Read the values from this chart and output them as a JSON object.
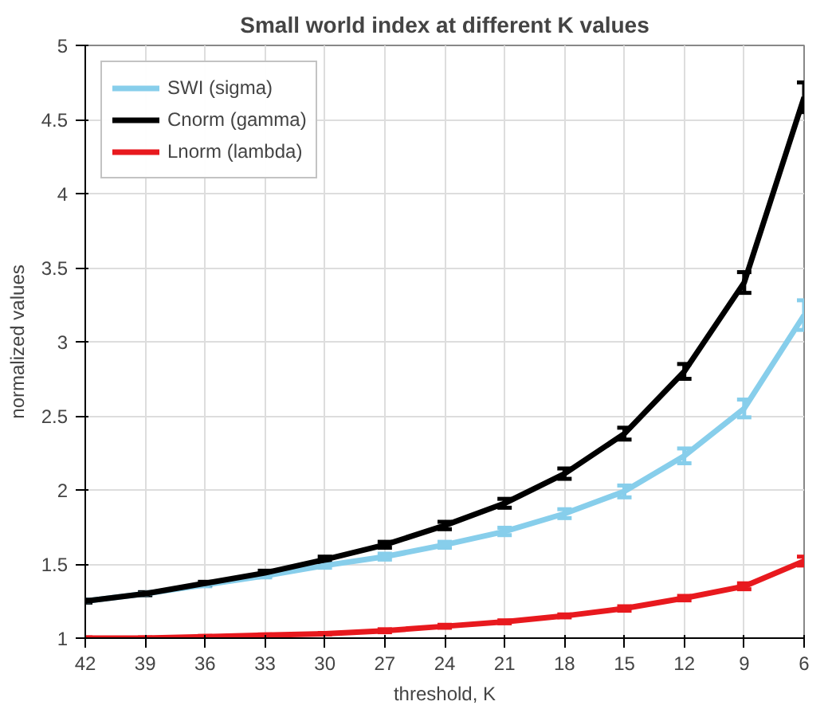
{
  "chart_data": {
    "type": "line",
    "title": "Small world index at different K values",
    "xlabel": "threshold, K",
    "ylabel": "normalized values",
    "x": [
      42,
      39,
      36,
      33,
      30,
      27,
      24,
      21,
      18,
      15,
      12,
      9,
      6
    ],
    "xlim": [
      42,
      6
    ],
    "xticks": [
      42,
      39,
      36,
      33,
      30,
      27,
      24,
      21,
      18,
      15,
      12,
      9,
      6
    ],
    "ylim": [
      1,
      5
    ],
    "yticks": [
      1,
      1.5,
      2,
      2.5,
      3,
      3.5,
      4,
      4.5,
      5
    ],
    "series": [
      {
        "name": "SWI (sigma)",
        "color": "#87ceeb",
        "values": [
          1.25,
          1.3,
          1.36,
          1.42,
          1.49,
          1.55,
          1.63,
          1.72,
          1.84,
          1.99,
          2.23,
          2.55,
          3.18
        ],
        "errors": [
          0.01,
          0.01,
          0.01,
          0.01,
          0.015,
          0.02,
          0.02,
          0.025,
          0.03,
          0.04,
          0.05,
          0.06,
          0.1
        ]
      },
      {
        "name": "Cnorm (gamma)",
        "color": "#000000",
        "values": [
          1.25,
          1.3,
          1.37,
          1.44,
          1.53,
          1.63,
          1.76,
          1.91,
          2.11,
          2.38,
          2.8,
          3.4,
          4.65
        ],
        "errors": [
          0.01,
          0.01,
          0.01,
          0.015,
          0.02,
          0.02,
          0.025,
          0.03,
          0.035,
          0.04,
          0.05,
          0.07,
          0.1
        ]
      },
      {
        "name": "Lnorm (lambda)",
        "color": "#e8191e",
        "values": [
          1.0,
          1.0,
          1.01,
          1.02,
          1.03,
          1.05,
          1.08,
          1.11,
          1.15,
          1.2,
          1.27,
          1.35,
          1.52
        ],
        "errors": [
          0.005,
          0.005,
          0.005,
          0.005,
          0.005,
          0.01,
          0.01,
          0.01,
          0.01,
          0.015,
          0.015,
          0.02,
          0.03
        ]
      }
    ],
    "grid": true,
    "legend": "top left",
    "marker": "none",
    "line_style": "solid"
  }
}
